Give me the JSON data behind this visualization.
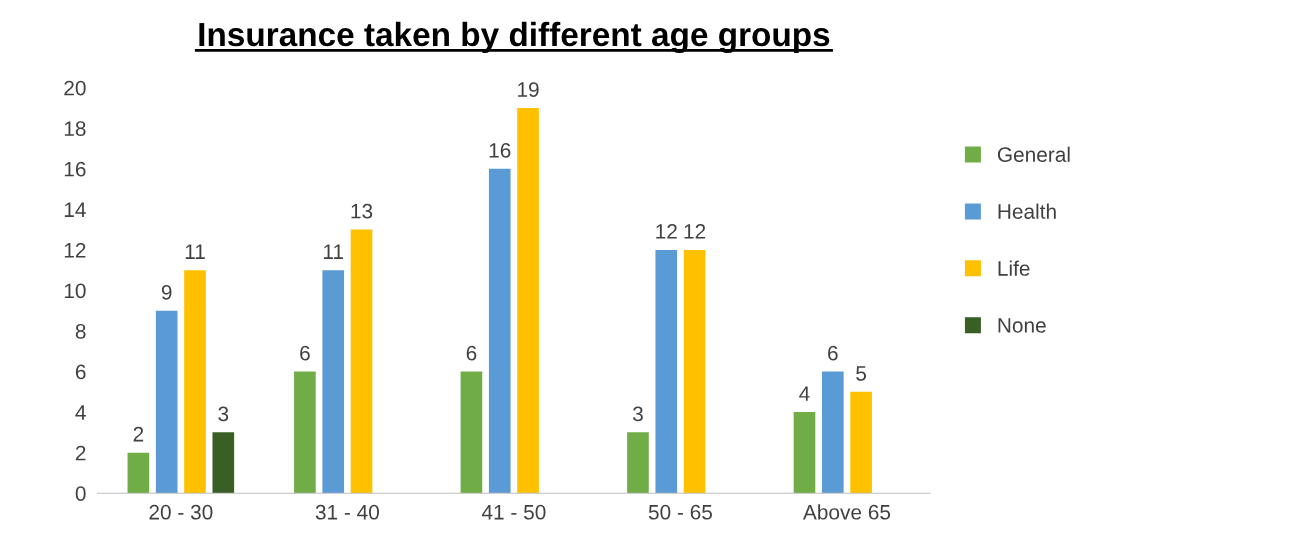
{
  "chart_data": {
    "type": "bar",
    "title": "Insurance taken by different age groups",
    "categories": [
      "20 - 30",
      "31 - 40",
      "41 - 50",
      "50 - 65",
      "Above 65"
    ],
    "series": [
      {
        "name": "General",
        "color": "#70ad47",
        "values": [
          2,
          6,
          6,
          3,
          4
        ]
      },
      {
        "name": "Health",
        "color": "#5b9bd5",
        "values": [
          9,
          11,
          16,
          12,
          6
        ]
      },
      {
        "name": "Life",
        "color": "#ffc000",
        "values": [
          11,
          13,
          19,
          12,
          5
        ]
      },
      {
        "name": "None",
        "color": "#3a5f25",
        "values": [
          3,
          null,
          null,
          null,
          null
        ]
      }
    ],
    "ylim": [
      0,
      20
    ],
    "yticks": [
      0,
      2,
      4,
      6,
      8,
      10,
      12,
      14,
      16,
      18,
      20
    ],
    "grid": false,
    "legend": "right",
    "data_labels": true
  }
}
